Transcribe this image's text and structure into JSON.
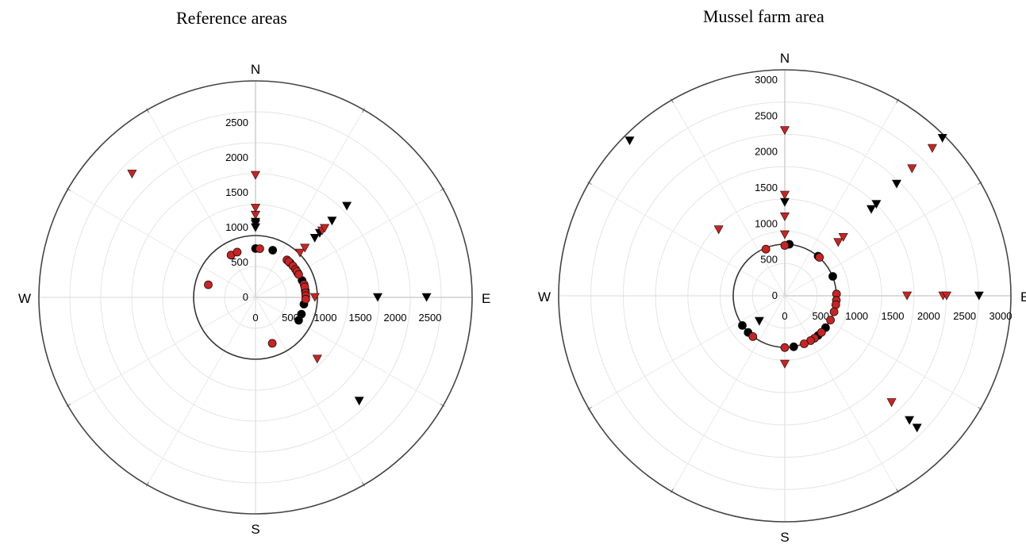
{
  "chart_data": [
    {
      "type": "scatter",
      "subtype": "polar",
      "title": "Reference areas",
      "directions": [
        "N",
        "E",
        "S",
        "W"
      ],
      "r_ticks": [
        "0",
        "500",
        "1000",
        "1500",
        "2000",
        "2500"
      ],
      "rmax": 2500,
      "grid": true,
      "series": [
        {
          "marker": "circle",
          "color": "#000000",
          "points": [
            {
              "angle": 0,
              "r": 700
            },
            {
              "angle": 20,
              "r": 720
            },
            {
              "angle": 45,
              "r": 700
            },
            {
              "angle": 60,
              "r": 700
            },
            {
              "angle": 70,
              "r": 710
            },
            {
              "angle": 82,
              "r": 720
            },
            {
              "angle": 98,
              "r": 700
            },
            {
              "angle": 110,
              "r": 700
            },
            {
              "angle": 118,
              "r": 700
            }
          ]
        },
        {
          "marker": "circle",
          "color": "#cc2222",
          "points": [
            {
              "angle": 330,
              "r": 700
            },
            {
              "angle": 338,
              "r": 700
            },
            {
              "angle": 285,
              "r": 700
            },
            {
              "angle": 5,
              "r": 700
            },
            {
              "angle": 40,
              "r": 700
            },
            {
              "angle": 43,
              "r": 700
            },
            {
              "angle": 50,
              "r": 700
            },
            {
              "angle": 55,
              "r": 700
            },
            {
              "angle": 58,
              "r": 700
            },
            {
              "angle": 62,
              "r": 700
            },
            {
              "angle": 75,
              "r": 720
            },
            {
              "angle": 78,
              "r": 720
            },
            {
              "angle": 85,
              "r": 720
            },
            {
              "angle": 88,
              "r": 720
            },
            {
              "angle": 92,
              "r": 720
            },
            {
              "angle": 160,
              "r": 700
            }
          ]
        },
        {
          "marker": "triangle-down",
          "color": "#000000",
          "points": [
            {
              "angle": 0,
              "r": 1000
            },
            {
              "angle": 0,
              "r": 1050
            },
            {
              "angle": 0,
              "r": 1080
            },
            {
              "angle": 45,
              "r": 1200
            },
            {
              "angle": 45,
              "r": 1300
            },
            {
              "angle": 45,
              "r": 1550
            },
            {
              "angle": 45,
              "r": 1850
            },
            {
              "angle": 90,
              "r": 1750
            },
            {
              "angle": 90,
              "r": 2450
            },
            {
              "angle": 135,
              "r": 2100
            }
          ]
        },
        {
          "marker": "triangle-down",
          "color": "#cc2222",
          "points": [
            {
              "angle": 0,
              "r": 1180
            },
            {
              "angle": 0,
              "r": 1280
            },
            {
              "angle": 0,
              "r": 1750
            },
            {
              "angle": 45,
              "r": 900
            },
            {
              "angle": 45,
              "r": 1000
            },
            {
              "angle": 45,
              "r": 1350
            },
            {
              "angle": 45,
              "r": 1400
            },
            {
              "angle": 90,
              "r": 850
            },
            {
              "angle": 135,
              "r": 1250
            },
            {
              "angle": 315,
              "r": 2500
            }
          ]
        }
      ]
    },
    {
      "type": "scatter",
      "subtype": "polar",
      "title": "Mussel farm area",
      "directions": [
        "N",
        "E",
        "S",
        "W"
      ],
      "r_ticks": [
        "0",
        "500",
        "1000",
        "1500",
        "2000",
        "2500",
        "3000"
      ],
      "rmax": 3000,
      "grid": true,
      "series": [
        {
          "marker": "circle",
          "color": "#000000",
          "points": [
            {
              "angle": 5,
              "r": 720
            },
            {
              "angle": 40,
              "r": 720
            },
            {
              "angle": 68,
              "r": 720
            },
            {
              "angle": 128,
              "r": 720
            },
            {
              "angle": 140,
              "r": 720
            },
            {
              "angle": 170,
              "r": 720
            },
            {
              "angle": 225,
              "r": 720
            },
            {
              "angle": 235,
              "r": 720
            }
          ]
        },
        {
          "marker": "circle",
          "color": "#cc2222",
          "points": [
            {
              "angle": 0,
              "r": 700
            },
            {
              "angle": 338,
              "r": 700
            },
            {
              "angle": 42,
              "r": 720
            },
            {
              "angle": 88,
              "r": 720
            },
            {
              "angle": 95,
              "r": 720
            },
            {
              "angle": 100,
              "r": 720
            },
            {
              "angle": 108,
              "r": 720
            },
            {
              "angle": 118,
              "r": 720
            },
            {
              "angle": 135,
              "r": 720
            },
            {
              "angle": 145,
              "r": 720
            },
            {
              "angle": 150,
              "r": 720
            },
            {
              "angle": 158,
              "r": 720
            },
            {
              "angle": 180,
              "r": 720
            },
            {
              "angle": 218,
              "r": 720
            }
          ]
        },
        {
          "marker": "triangle-down",
          "color": "#000000",
          "points": [
            {
              "angle": 0,
              "r": 1300
            },
            {
              "angle": 45,
              "r": 1700
            },
            {
              "angle": 45,
              "r": 1800
            },
            {
              "angle": 45,
              "r": 2200
            },
            {
              "angle": 45,
              "r": 3100
            },
            {
              "angle": 90,
              "r": 2700
            },
            {
              "angle": 135,
              "r": 2600
            },
            {
              "angle": 135,
              "r": 2450
            },
            {
              "angle": 225,
              "r": 500
            },
            {
              "angle": 315,
              "r": 3050
            }
          ]
        },
        {
          "marker": "triangle-down",
          "color": "#cc2222",
          "points": [
            {
              "angle": 0,
              "r": 2300
            },
            {
              "angle": 0,
              "r": 1400
            },
            {
              "angle": 0,
              "r": 1100
            },
            {
              "angle": 0,
              "r": 850
            },
            {
              "angle": 180,
              "r": 950
            },
            {
              "angle": 45,
              "r": 1050
            },
            {
              "angle": 45,
              "r": 1150
            },
            {
              "angle": 45,
              "r": 2500
            },
            {
              "angle": 45,
              "r": 2900
            },
            {
              "angle": 90,
              "r": 1700
            },
            {
              "angle": 90,
              "r": 2200
            },
            {
              "angle": 90,
              "r": 2250
            },
            {
              "angle": 135,
              "r": 2100
            },
            {
              "angle": 315,
              "r": 1300
            }
          ]
        }
      ]
    }
  ]
}
